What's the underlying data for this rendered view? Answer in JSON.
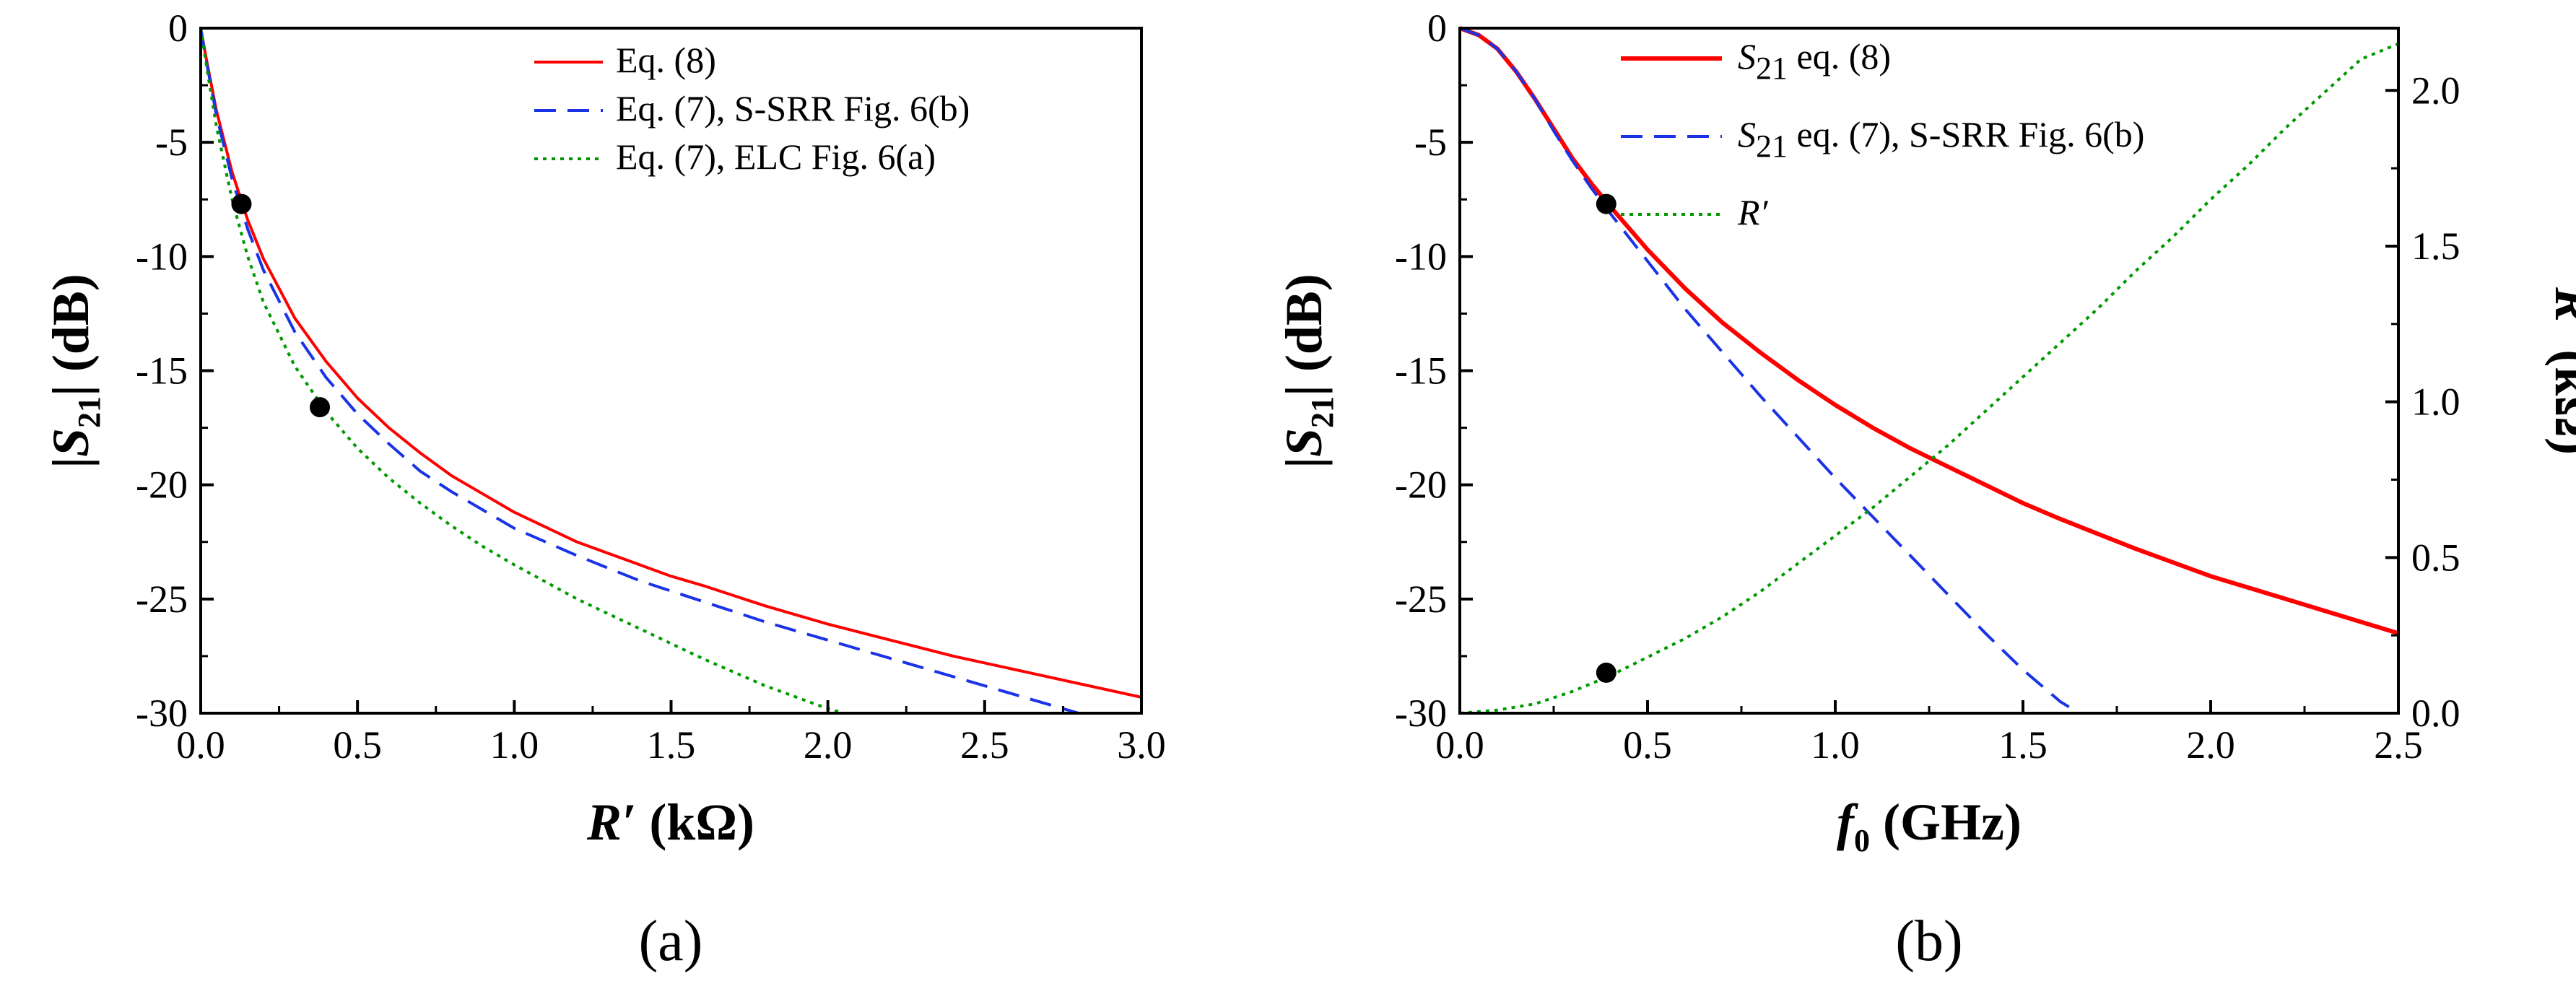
{
  "chart_data": [
    {
      "type": "line",
      "panel_label": "(a)",
      "xlabel": "R′ (kΩ)",
      "ylabel": "|S21| (dB)",
      "xlim": [
        0,
        3.0
      ],
      "ylim": [
        -30,
        0
      ],
      "x_ticks": [
        "0.0",
        "0.5",
        "1.0",
        "1.5",
        "2.0",
        "2.5",
        "3.0"
      ],
      "y_ticks": [
        "0",
        "-5",
        "-10",
        "-15",
        "-20",
        "-25",
        "-30"
      ],
      "legend_position": "top-right",
      "series": [
        {
          "name": "Eq. (8)",
          "color": "#ff0000",
          "style": "solid",
          "x": [
            0.0,
            0.02,
            0.05,
            0.1,
            0.15,
            0.2,
            0.3,
            0.4,
            0.5,
            0.6,
            0.7,
            0.8,
            0.9,
            1.0,
            1.2,
            1.4,
            1.5,
            1.6,
            1.8,
            2.0,
            2.2,
            2.4,
            2.6,
            2.8,
            3.0
          ],
          "y": [
            0.0,
            -1.5,
            -3.6,
            -6.3,
            -8.4,
            -10.1,
            -12.7,
            -14.6,
            -16.2,
            -17.5,
            -18.6,
            -19.6,
            -20.4,
            -21.2,
            -22.5,
            -23.5,
            -24.0,
            -24.4,
            -25.3,
            -26.1,
            -26.8,
            -27.5,
            -28.1,
            -28.7,
            -29.3
          ]
        },
        {
          "name": "Eq. (7), S-SRR Fig. 6(b)",
          "color": "#1a33e6",
          "style": "dashed",
          "x": [
            0.0,
            0.02,
            0.05,
            0.1,
            0.15,
            0.2,
            0.3,
            0.4,
            0.5,
            0.6,
            0.7,
            0.8,
            0.9,
            1.0,
            1.2,
            1.4,
            1.6,
            1.8,
            2.0,
            2.2,
            2.4,
            2.6,
            2.8
          ],
          "y": [
            0.0,
            -1.6,
            -3.8,
            -6.6,
            -8.8,
            -10.6,
            -13.3,
            -15.3,
            -16.9,
            -18.2,
            -19.4,
            -20.3,
            -21.1,
            -21.9,
            -23.1,
            -24.2,
            -25.1,
            -26.0,
            -26.8,
            -27.6,
            -28.4,
            -29.2,
            -30.0
          ]
        },
        {
          "name": "Eq. (7), ELC Fig. 6(a)",
          "color": "#009900",
          "style": "dotted",
          "x": [
            0.0,
            0.02,
            0.05,
            0.1,
            0.15,
            0.2,
            0.3,
            0.4,
            0.5,
            0.6,
            0.7,
            0.8,
            0.9,
            1.0,
            1.2,
            1.4,
            1.6,
            1.8,
            2.0,
            2.05
          ],
          "y": [
            0.0,
            -1.8,
            -4.3,
            -7.5,
            -10.0,
            -12.0,
            -14.8,
            -16.8,
            -18.4,
            -19.7,
            -20.8,
            -21.8,
            -22.7,
            -23.5,
            -25.0,
            -26.3,
            -27.6,
            -28.8,
            -29.8,
            -30.0
          ]
        }
      ],
      "markers": [
        {
          "x": 0.13,
          "y": -7.7
        },
        {
          "x": 0.38,
          "y": -16.6
        }
      ]
    },
    {
      "type": "line",
      "panel_label": "(b)",
      "xlabel": "f0 (GHz)",
      "ylabel": "|S21| (dB)",
      "y2label": "R′ (kΩ)",
      "xlim": [
        0,
        2.5
      ],
      "ylim": [
        -30,
        0
      ],
      "y2lim": [
        0,
        2.2
      ],
      "x_ticks": [
        "0.0",
        "0.5",
        "1.0",
        "1.5",
        "2.0",
        "2.5"
      ],
      "y_ticks": [
        "0",
        "-5",
        "-10",
        "-15",
        "-20",
        "-25",
        "-30"
      ],
      "y2_ticks": [
        "0.0",
        "0.5",
        "1.0",
        "1.5",
        "2.0"
      ],
      "legend_position": "top-center",
      "series": [
        {
          "name": "S21 eq. (8)",
          "legend_main": "S",
          "legend_sub": "21",
          "legend_rest": " eq. (8)",
          "color": "#ff0000",
          "style": "solid",
          "axis": "left",
          "x": [
            0.0,
            0.05,
            0.1,
            0.15,
            0.2,
            0.25,
            0.3,
            0.35,
            0.4,
            0.5,
            0.6,
            0.7,
            0.8,
            0.9,
            1.0,
            1.1,
            1.2,
            1.3,
            1.4,
            1.5,
            1.6,
            1.8,
            2.0,
            2.2,
            2.4,
            2.5
          ],
          "y": [
            0.0,
            -0.3,
            -0.9,
            -1.9,
            -3.1,
            -4.4,
            -5.7,
            -6.8,
            -7.8,
            -9.7,
            -11.4,
            -12.9,
            -14.2,
            -15.4,
            -16.5,
            -17.5,
            -18.4,
            -19.2,
            -20.0,
            -20.8,
            -21.5,
            -22.8,
            -24.0,
            -25.0,
            -26.0,
            -26.5
          ]
        },
        {
          "name": "S21 eq. (7), S-SRR Fig. 6(b)",
          "legend_main": "S",
          "legend_sub": "21",
          "legend_rest": " eq. (7), S-SRR Fig. 6(b)",
          "color": "#1a33e6",
          "style": "dashed",
          "axis": "left",
          "x": [
            0.0,
            0.05,
            0.1,
            0.15,
            0.2,
            0.25,
            0.3,
            0.35,
            0.4,
            0.5,
            0.6,
            0.7,
            0.8,
            0.9,
            1.0,
            1.1,
            1.2,
            1.3,
            1.4,
            1.5,
            1.6,
            1.65
          ],
          "y": [
            0.0,
            -0.3,
            -0.9,
            -1.9,
            -3.1,
            -4.5,
            -5.8,
            -7.0,
            -8.1,
            -10.2,
            -12.3,
            -14.2,
            -16.1,
            -17.9,
            -19.7,
            -21.4,
            -23.1,
            -24.8,
            -26.5,
            -28.1,
            -29.5,
            -30.0
          ]
        },
        {
          "name": "R′",
          "legend_main": "R′",
          "legend_sub": "",
          "legend_rest": "",
          "color": "#009900",
          "style": "dotted",
          "axis": "right",
          "x": [
            0.0,
            0.1,
            0.2,
            0.3,
            0.4,
            0.5,
            0.6,
            0.7,
            0.8,
            0.9,
            1.0,
            1.1,
            1.2,
            1.3,
            1.4,
            1.5,
            1.6,
            1.7,
            1.8,
            1.9,
            2.0,
            2.1,
            2.2,
            2.3,
            2.4,
            2.5
          ],
          "y": [
            0.0,
            0.01,
            0.03,
            0.07,
            0.12,
            0.18,
            0.24,
            0.31,
            0.39,
            0.48,
            0.57,
            0.66,
            0.76,
            0.86,
            0.97,
            1.08,
            1.19,
            1.3,
            1.42,
            1.53,
            1.65,
            1.76,
            1.88,
            1.99,
            2.1,
            2.15
          ]
        }
      ],
      "markers": [
        {
          "x": 0.39,
          "y": -7.7,
          "axis": "left"
        },
        {
          "x": 0.39,
          "y": 0.13,
          "axis": "right"
        }
      ]
    }
  ]
}
